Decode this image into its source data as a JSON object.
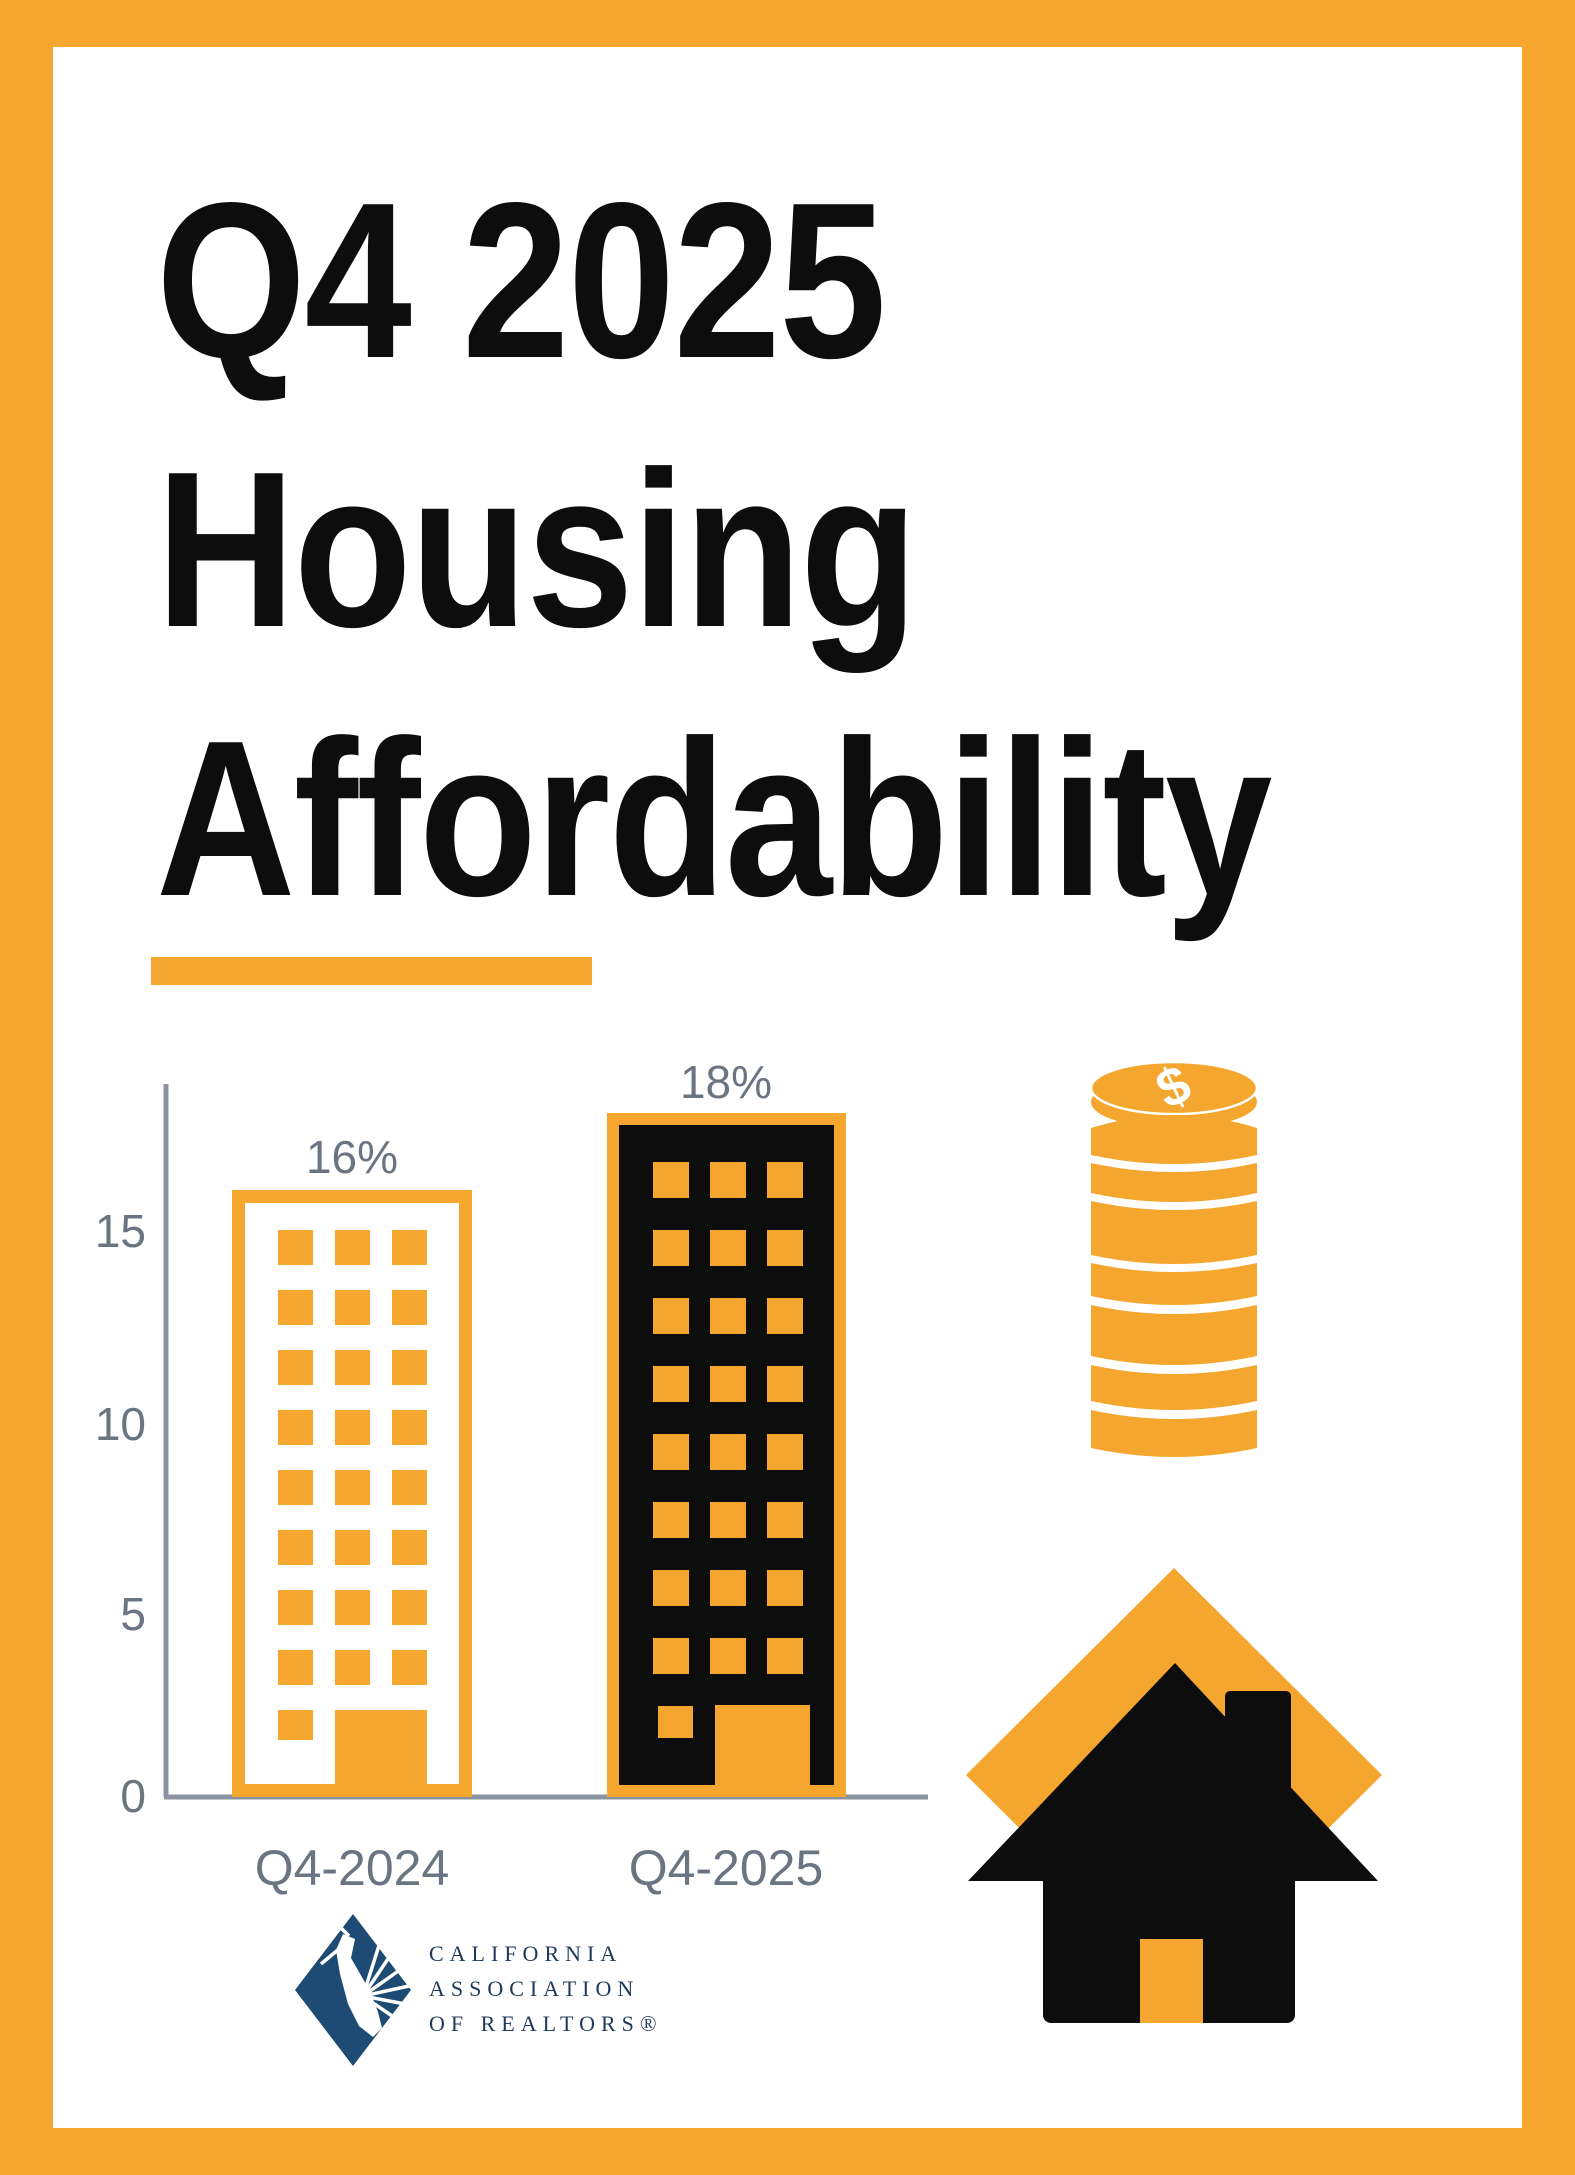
{
  "page": {
    "frame_color": "#F5A62E",
    "background": "#FFFFFF"
  },
  "title": {
    "lines": [
      "Q4 2025",
      "Housing",
      "Affordability"
    ],
    "color": "#0D0D0D"
  },
  "chart_data": {
    "type": "bar",
    "title": "Q4 2025 Housing Affordability",
    "categories": [
      "Q4-2024",
      "Q4-2025"
    ],
    "values": [
      16,
      18
    ],
    "value_labels": [
      "16%",
      "18%"
    ],
    "yticks": [
      "15",
      "10",
      "5",
      "0"
    ],
    "ylim": [
      0,
      19
    ],
    "xlabel": "",
    "ylabel": "",
    "grid": false,
    "legend": false,
    "bar_style": "building-pictogram",
    "bar1_fill": "#FFFFFF",
    "bar2_fill": "#0D0D0D",
    "bar_outline": "#F5A62E",
    "label_color": "#6B7582",
    "axis_color": "#8A92A0"
  },
  "icons": {
    "coin_symbol": "$",
    "coin_color": "#F5A62E",
    "house_colors": {
      "diamond": "#F5A62E",
      "house": "#0D0D0D",
      "door": "#F5A62E"
    }
  },
  "logo": {
    "lines": [
      "CALIFORNIA",
      "ASSOCIATION",
      "OF REALTORS®"
    ],
    "mark_color": "#1D4B73",
    "text_color": "#1E3A5A"
  }
}
